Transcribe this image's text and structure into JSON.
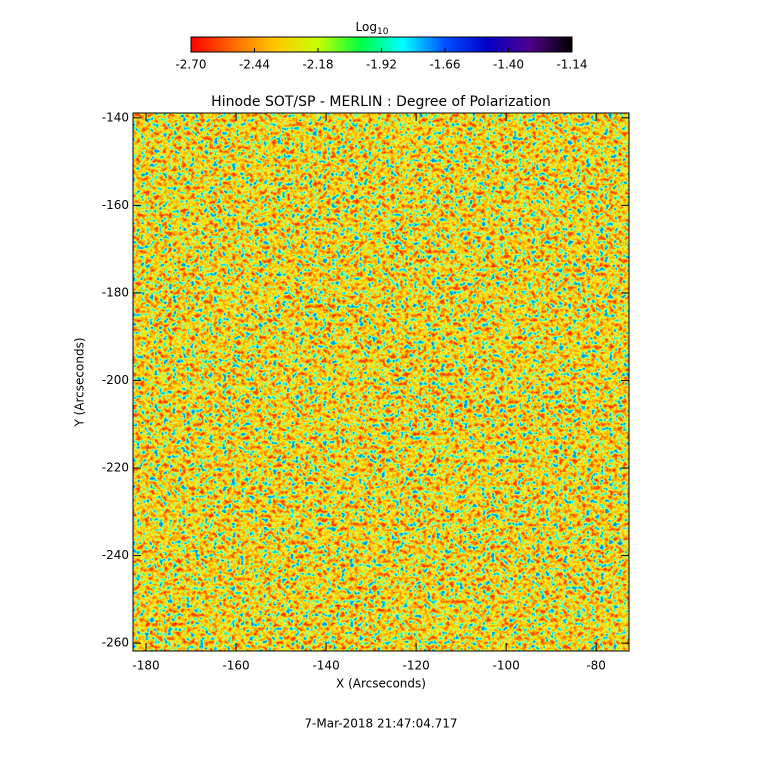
{
  "chart_data": {
    "type": "heatmap",
    "title": "Hinode SOT/SP - MERLIN : Degree of Polarization",
    "xlabel": "X (Arcseconds)",
    "ylabel": "Y (Arcseconds)",
    "footer": "7-Mar-2018 21:47:04.717",
    "xlim": [
      -182.9,
      -72.7
    ],
    "xticks": [
      -180,
      -160,
      -140,
      -120,
      -100,
      -80
    ],
    "ylim": [
      -261.8,
      -138.9
    ],
    "yticks": [
      -260,
      -240,
      -220,
      -200,
      -180,
      -160,
      -140
    ],
    "colorbar": {
      "title": "Log",
      "title_subscript": "10",
      "lim": [
        -2.7,
        -1.14
      ],
      "ticks": [
        {
          "value": -2.7,
          "label": "-2.70"
        },
        -2.44,
        -2.18,
        -1.92,
        -1.66,
        {
          "value": -1.4,
          "label": "-1.40"
        },
        -1.14
      ],
      "colormap": [
        "#ff0000",
        "#ff6a00",
        "#ffc800",
        "#c8ff00",
        "#00ff40",
        "#00ffff",
        "#0050ff",
        "#0000c8",
        "#50008c",
        "#000000"
      ]
    }
  }
}
